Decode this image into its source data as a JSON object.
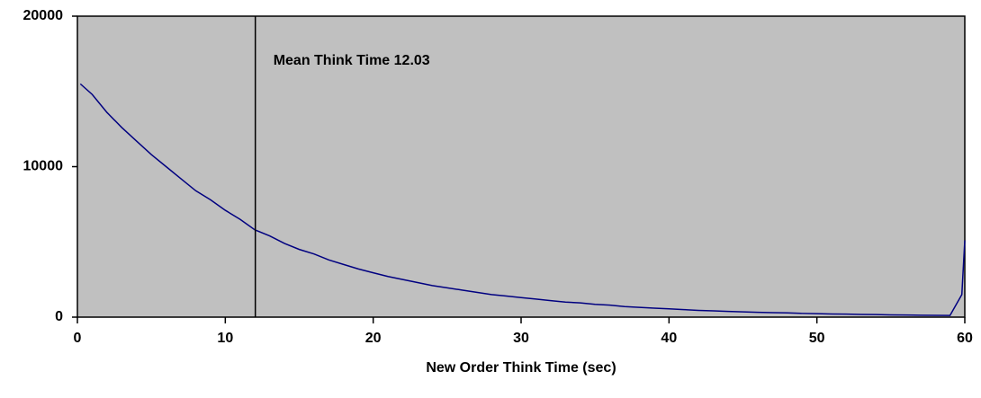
{
  "chart_data": {
    "type": "line",
    "xlabel": "New Order Think Time (sec)",
    "x": [
      0.2,
      1,
      2,
      3,
      4,
      5,
      6,
      7,
      8,
      9,
      10,
      11,
      12,
      13,
      14,
      15,
      16,
      17,
      18,
      19,
      20,
      21,
      22,
      23,
      24,
      25,
      26,
      27,
      28,
      29,
      30,
      31,
      32,
      33,
      34,
      35,
      36,
      37,
      38,
      39,
      40,
      41,
      42,
      43,
      44,
      45,
      46,
      47,
      48,
      49,
      50,
      51,
      52,
      53,
      54,
      55,
      56,
      57,
      58,
      59,
      59.8,
      60
    ],
    "series": [
      {
        "color": "#000080",
        "values": [
          15500,
          14800,
          13600,
          12600,
          11700,
          10800,
          10000,
          9200,
          8400,
          7800,
          7100,
          6500,
          5800,
          5400,
          4900,
          4500,
          4200,
          3800,
          3500,
          3200,
          2950,
          2700,
          2500,
          2300,
          2100,
          1950,
          1800,
          1650,
          1500,
          1400,
          1300,
          1200,
          1100,
          1000,
          950,
          850,
          800,
          700,
          650,
          600,
          550,
          500,
          450,
          420,
          380,
          350,
          320,
          300,
          280,
          250,
          230,
          210,
          200,
          180,
          170,
          150,
          140,
          130,
          120,
          110,
          1500,
          5100
        ]
      }
    ],
    "xlim": [
      0,
      60
    ],
    "xticks": [
      0,
      10,
      20,
      30,
      40,
      50,
      60
    ],
    "ylim": [
      0,
      20000
    ],
    "yticks": [
      0,
      10000,
      20000
    ],
    "background": "#c0c0c0",
    "annotation": {
      "x": 12.03,
      "text": "Mean Think Time 12.03"
    }
  }
}
